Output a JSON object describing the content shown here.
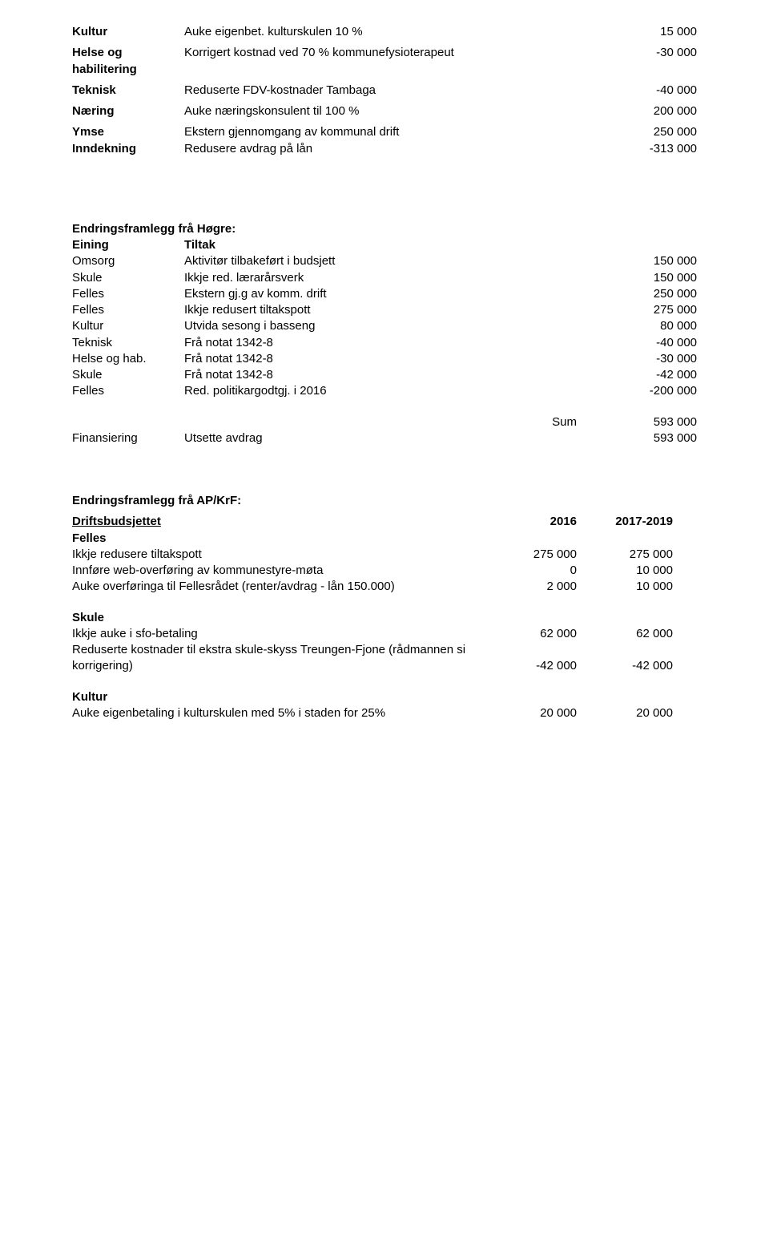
{
  "section1": {
    "rows": [
      {
        "left": "Kultur",
        "leftBold": true,
        "mid": "Auke eigenbet. kulturskulen 10 %",
        "right": "15 000"
      },
      {
        "left": "Helse og habilitering",
        "leftBold": true,
        "mid": "Korrigert kostnad ved 70 % kommunefysioterapeut",
        "right": "-30 000",
        "tworow": true
      },
      {
        "left": "Teknisk",
        "leftBold": true,
        "mid": "Reduserte FDV-kostnader Tambaga",
        "right": "-40 000"
      },
      {
        "left": "Næring",
        "leftBold": true,
        "mid": "Auke næringskonsulent til 100 %",
        "right": "200 000"
      },
      {
        "left": "Ymse",
        "leftBold": true,
        "mid": "Ekstern gjennomgang av kommunal drift",
        "right": "250 000",
        "tworow": true
      },
      {
        "left": "Inndekning",
        "leftBold": true,
        "mid": "Redusere avdrag på lån",
        "right": "-313 000"
      }
    ]
  },
  "hogre": {
    "title": "Endringsframlegg frå Høgre:",
    "header": {
      "eining": "Eining",
      "tiltak": "Tiltak"
    },
    "rows": [
      {
        "left": "Omsorg",
        "mid": "Aktivitør tilbakeført i budsjett",
        "right": "150 000",
        "midTwo": true
      },
      {
        "left": "Skule",
        "mid": "Ikkje red. lærarårsverk",
        "right": "150 000"
      },
      {
        "left": "Felles",
        "mid": "Ekstern gj.g av komm. drift",
        "right": "250 000",
        "midTwo": true
      },
      {
        "left": "Felles",
        "mid": "Ikkje redusert tiltakspott",
        "right": "275 000"
      },
      {
        "left": "Kultur",
        "mid": "Utvida sesong i basseng",
        "right": "80 000"
      },
      {
        "left": "Teknisk",
        "mid": "Frå notat 1342-8",
        "right": "-40 000"
      },
      {
        "left": "Helse og hab.",
        "mid": "Frå notat 1342-8",
        "right": "-30 000",
        "leftTwo": true
      },
      {
        "left": "Skule",
        "mid": "Frå notat 1342-8",
        "right": "-42 000"
      },
      {
        "left": "Felles",
        "mid": "Red. politikargodtgj. i 2016",
        "right": "-200 000",
        "midTwo": true
      }
    ],
    "sum": {
      "label": "Sum",
      "value": "593 000"
    },
    "finans": {
      "left": "Finansiering",
      "mid": "Utsette avdrag",
      "right": "593 000"
    }
  },
  "apkrf": {
    "title": "Endringsframlegg frå AP/KrF:",
    "drift_header": {
      "label": "Driftsbudsjettet",
      "c1": "2016",
      "c2": "2017-2019"
    },
    "felles_title": "Felles",
    "felles_rows": [
      {
        "label": "Ikkje redusere tiltakspott",
        "c1": "275 000",
        "c2": "275 000"
      },
      {
        "label": "Innføre web-overføring av kommunestyre-møta",
        "c1": "0",
        "c2": "10 000"
      },
      {
        "label": "Auke overføringa til Fellesrådet (renter/avdrag - lån 150.000)",
        "c1": "2 000",
        "c2": "10 000"
      }
    ],
    "skule_title": "Skule",
    "skule_rows": [
      {
        "label": "Ikkje auke i sfo-betaling",
        "c1": "62 000",
        "c2": "62 000"
      },
      {
        "label": "Reduserte kostnader til ekstra skule-skyss Treungen-Fjone (rådmannen si korrigering)",
        "c1": "-42 000",
        "c2": "-42 000"
      }
    ],
    "kultur_title": "Kultur",
    "kultur_rows": [
      {
        "label": "Auke eigenbetaling i kulturskulen med 5% i staden for 25%",
        "c1": "20 000",
        "c2": "20 000"
      }
    ]
  }
}
